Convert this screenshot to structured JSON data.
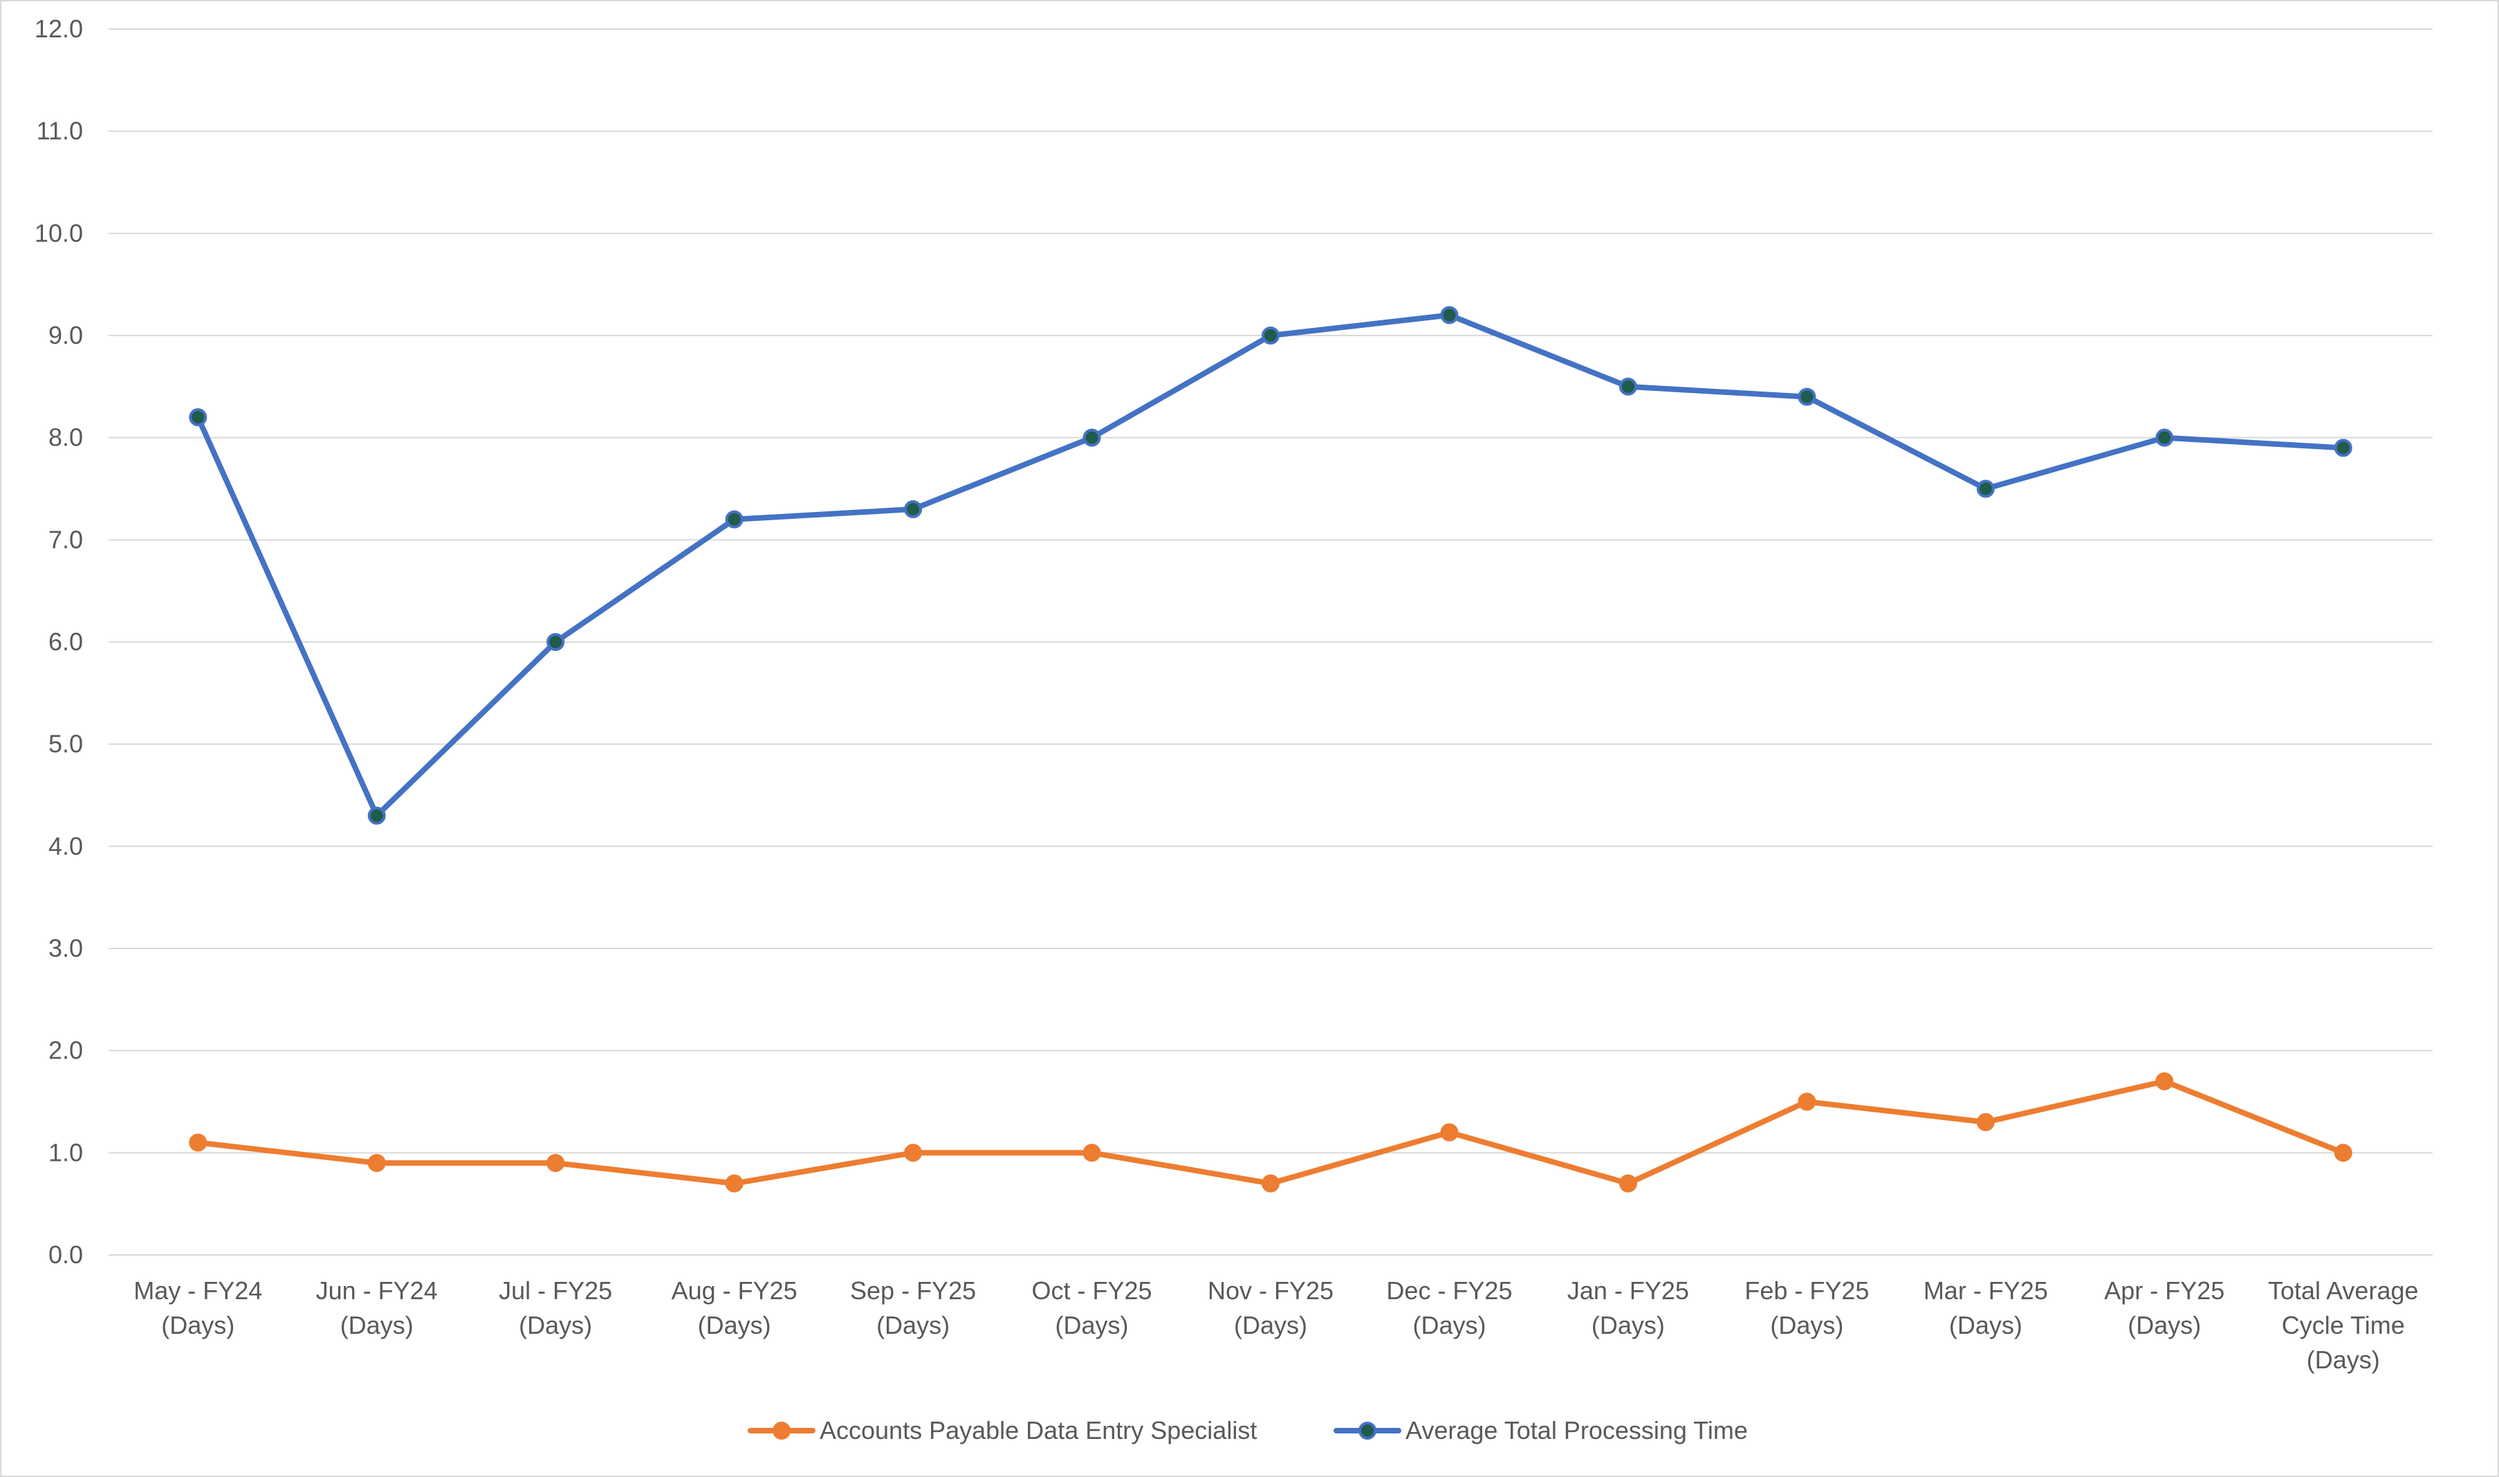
{
  "chart_data": {
    "type": "line",
    "title": "",
    "xlabel": "",
    "ylabel": "",
    "ylim": [
      0,
      12
    ],
    "y_ticks": [
      "0.0",
      "1.0",
      "2.0",
      "3.0",
      "4.0",
      "5.0",
      "6.0",
      "7.0",
      "8.0",
      "9.0",
      "10.0",
      "11.0",
      "12.0"
    ],
    "grid": true,
    "legend_position": "bottom",
    "categories": [
      [
        "May - FY24",
        "(Days)"
      ],
      [
        "Jun - FY24",
        "(Days)"
      ],
      [
        "Jul - FY25",
        "(Days)"
      ],
      [
        "Aug - FY25",
        "(Days)"
      ],
      [
        "Sep - FY25",
        "(Days)"
      ],
      [
        "Oct - FY25",
        "(Days)"
      ],
      [
        "Nov - FY25",
        "(Days)"
      ],
      [
        "Dec - FY25",
        "(Days)"
      ],
      [
        "Jan - FY25",
        "(Days)"
      ],
      [
        "Feb - FY25",
        "(Days)"
      ],
      [
        "Mar - FY25",
        "(Days)"
      ],
      [
        "Apr - FY25",
        "(Days)"
      ],
      [
        "Total Average",
        "Cycle Time",
        "(Days)"
      ]
    ],
    "series": [
      {
        "name": "Accounts Payable Data Entry Specialist",
        "color": "#ed7d31",
        "marker_color": "#ed7d31",
        "values": [
          1.1,
          0.9,
          0.9,
          0.7,
          1.0,
          1.0,
          0.7,
          1.2,
          0.7,
          1.5,
          1.3,
          1.7,
          1.0
        ]
      },
      {
        "name": "Average Total Processing Time",
        "color": "#4472c4",
        "marker_color": "#1f5c4a",
        "values": [
          8.2,
          4.3,
          6.0,
          7.2,
          7.3,
          8.0,
          9.0,
          9.2,
          8.5,
          8.4,
          7.5,
          8.0,
          7.9
        ]
      }
    ]
  }
}
